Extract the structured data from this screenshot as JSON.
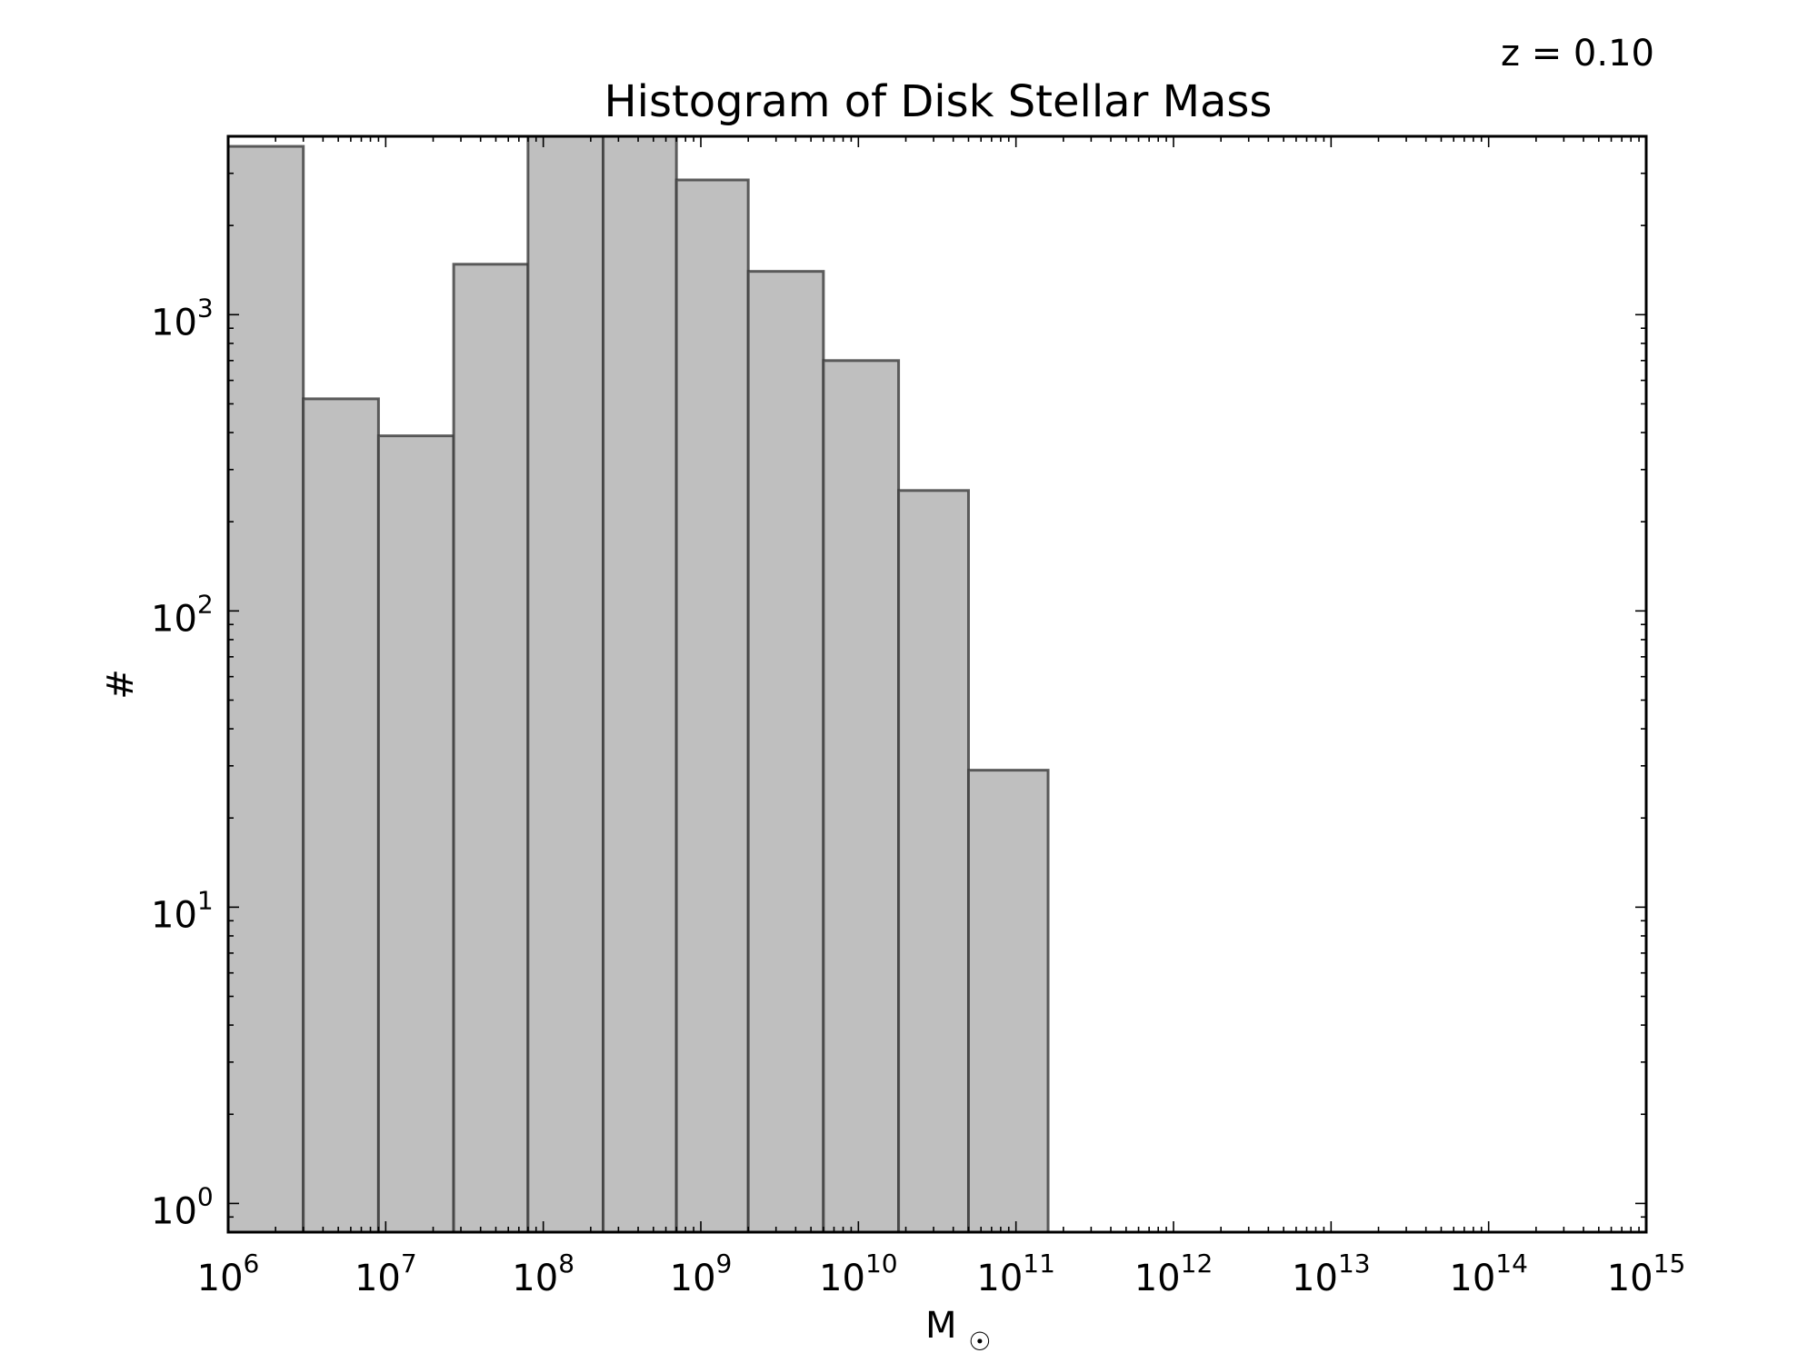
{
  "annotation": "z = 0.10",
  "chart_data": {
    "type": "bar",
    "title": "Histogram of Disk Stellar Mass",
    "xlabel": "M",
    "xlabel_subscript": "☉",
    "ylabel": "#",
    "x_scale": "log",
    "y_scale": "log",
    "xlim": [
      1000000,
      1000000000000000
    ],
    "ylim": [
      0.8,
      4000
    ],
    "x_tick_labels": [
      {
        "base": "10",
        "exp": "6"
      },
      {
        "base": "10",
        "exp": "7"
      },
      {
        "base": "10",
        "exp": "8"
      },
      {
        "base": "10",
        "exp": "9"
      },
      {
        "base": "10",
        "exp": "10"
      },
      {
        "base": "10",
        "exp": "11"
      },
      {
        "base": "10",
        "exp": "12"
      },
      {
        "base": "10",
        "exp": "13"
      },
      {
        "base": "10",
        "exp": "14"
      },
      {
        "base": "10",
        "exp": "15"
      }
    ],
    "y_tick_labels": [
      {
        "base": "10",
        "exp": "0"
      },
      {
        "base": "10",
        "exp": "1"
      },
      {
        "base": "10",
        "exp": "2"
      },
      {
        "base": "10",
        "exp": "3"
      }
    ],
    "bin_edges": [
      1000000,
      3000000,
      9000000,
      27000000,
      80000000,
      240000000,
      700000000,
      2000000000,
      6000000000,
      18000000000,
      50000000000,
      160000000000
    ],
    "values": [
      3700,
      520,
      390,
      1480,
      4000,
      4000,
      2850,
      1400,
      700,
      255,
      29
    ],
    "grid": false,
    "bar_color": "#bfbfbf",
    "edge_color": "#3a3a3a"
  }
}
